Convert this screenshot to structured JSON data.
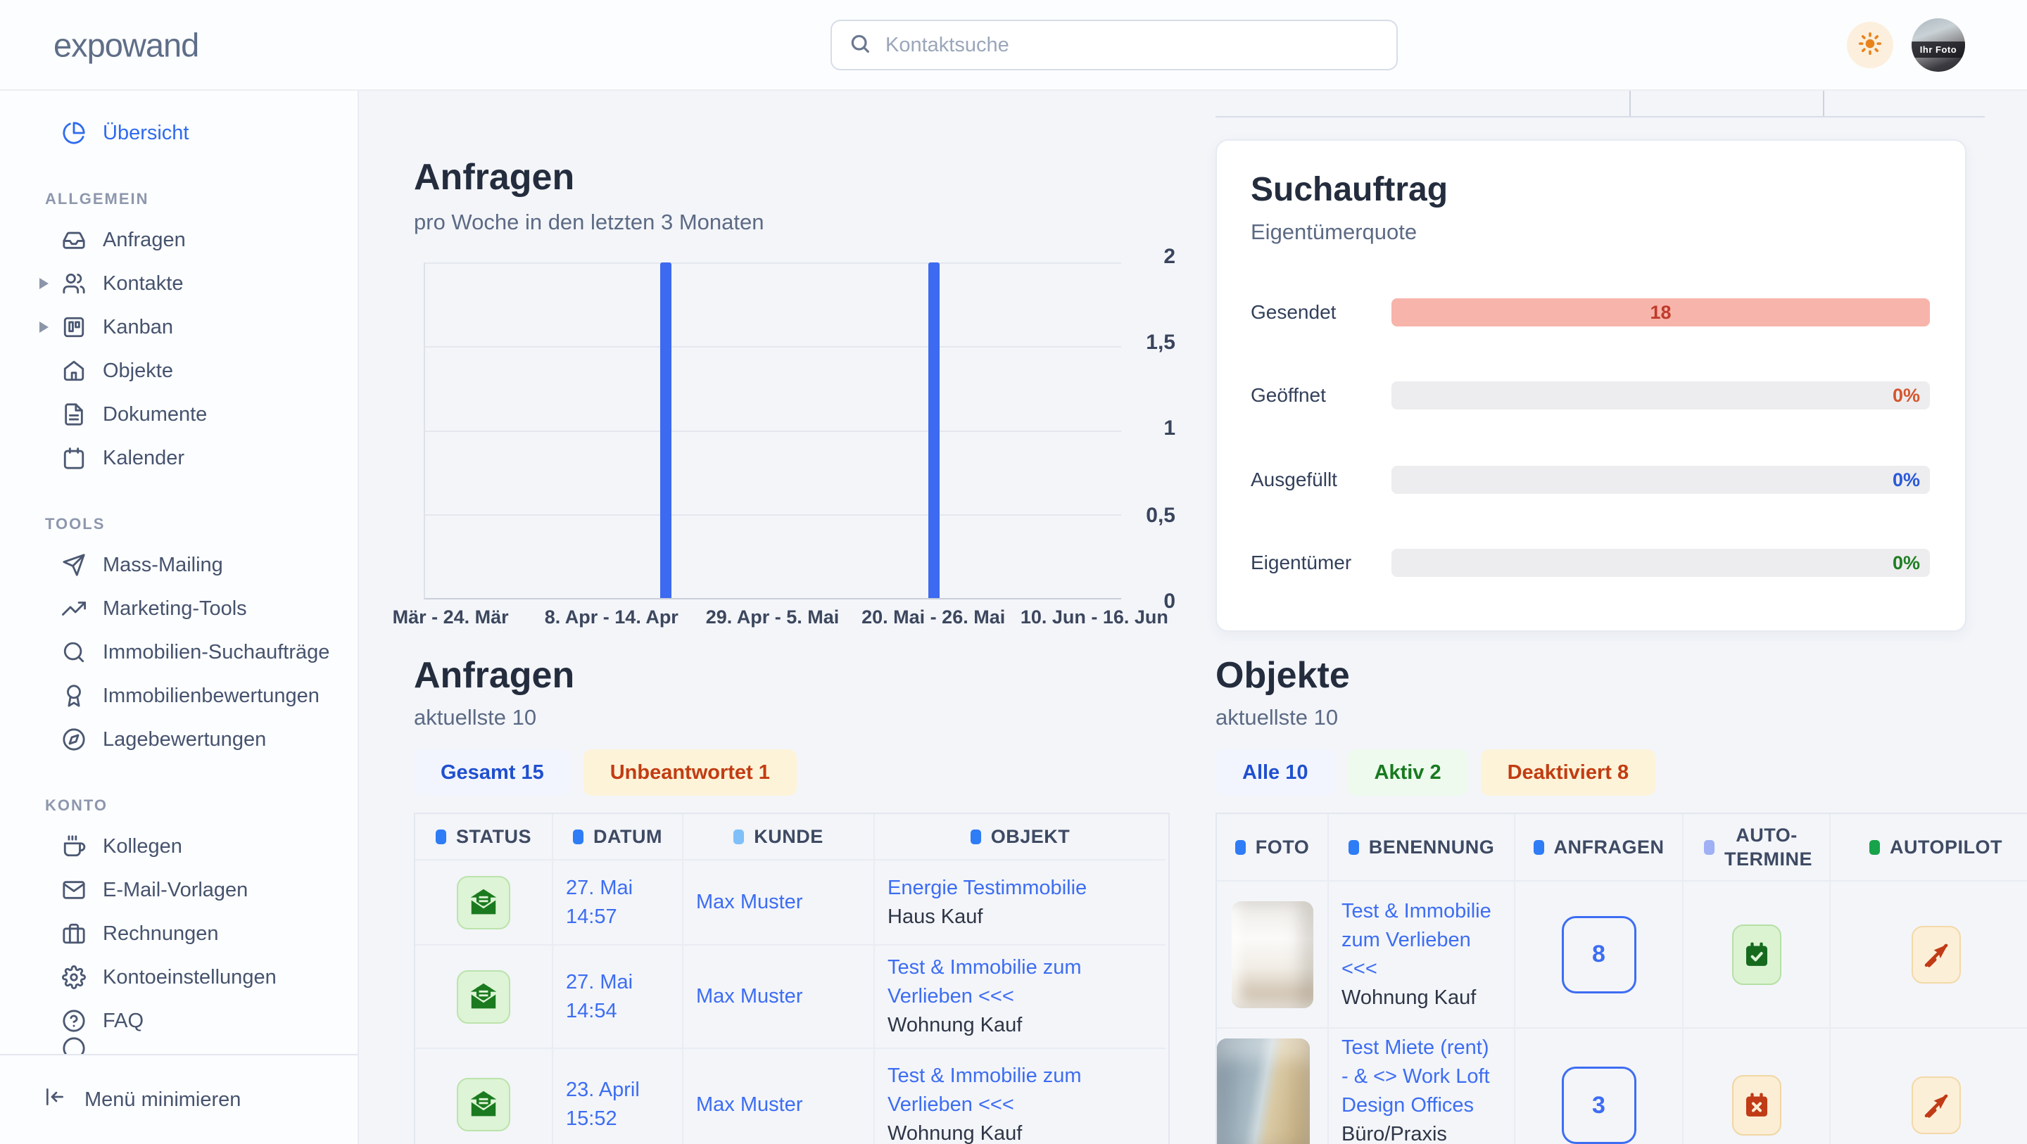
{
  "topbar": {
    "logo": "expowand",
    "search_placeholder": "Kontaktsuche",
    "avatar_text": "Ihr Foto"
  },
  "sidebar": {
    "overview_label": "Übersicht",
    "sections": [
      {
        "label": "ALLGEMEIN",
        "items": [
          {
            "label": "Anfragen",
            "icon": "inbox-icon"
          },
          {
            "label": "Kontakte",
            "icon": "users-icon"
          },
          {
            "label": "Kanban",
            "icon": "kanban-icon"
          },
          {
            "label": "Objekte",
            "icon": "home-icon"
          },
          {
            "label": "Dokumente",
            "icon": "document-icon"
          },
          {
            "label": "Kalender",
            "icon": "calendar-icon"
          }
        ]
      },
      {
        "label": "TOOLS",
        "items": [
          {
            "label": "Mass-Mailing",
            "icon": "send-icon"
          },
          {
            "label": "Marketing-Tools",
            "icon": "trending-up-icon"
          },
          {
            "label": "Immobilien-Suchaufträge",
            "icon": "search-icon"
          },
          {
            "label": "Immobilienbewertungen",
            "icon": "award-icon"
          },
          {
            "label": "Lagebewertungen",
            "icon": "compass-icon"
          }
        ]
      },
      {
        "label": "KONTO",
        "items": [
          {
            "label": "Kollegen",
            "icon": "coffee-icon"
          },
          {
            "label": "E-Mail-Vorlagen",
            "icon": "mail-icon"
          },
          {
            "label": "Rechnungen",
            "icon": "briefcase-icon"
          },
          {
            "label": "Kontoeinstellungen",
            "icon": "gear-icon"
          },
          {
            "label": "FAQ",
            "icon": "help-icon"
          }
        ]
      }
    ],
    "minimize_label": "Menü minimieren"
  },
  "chart_data": {
    "type": "bar",
    "title": "Anfragen",
    "subtitle": "pro Woche in den letzten 3 Monaten",
    "values": [
      0,
      0,
      0,
      0,
      2,
      0,
      0,
      0,
      0,
      2,
      0,
      0,
      0
    ],
    "ylim": [
      0,
      2
    ],
    "y_ticks": [
      "2",
      "1,5",
      "1",
      "0,5",
      "0"
    ],
    "x_tick_labels": [
      "Mär - 24. Mär",
      "8. Apr - 14. Apr",
      "29. Apr - 5. Mai",
      "20. Mai - 26. Mai",
      "10. Jun - 16. Jun"
    ],
    "x_tick_weeks": [
      1,
      4,
      7,
      10,
      13
    ],
    "bar_color": "#3c6af0",
    "grid": true,
    "legend": "none"
  },
  "anfragen_table": {
    "title": "Anfragen",
    "subtitle": "aktuellste 10",
    "tabs": [
      {
        "label": "Gesamt 15"
      },
      {
        "label": "Unbeantwortet 1"
      }
    ],
    "headers": [
      {
        "label": "STATUS",
        "bullet": "#2e7cf6"
      },
      {
        "label": "DATUM",
        "bullet": "#2e7cf6"
      },
      {
        "label": "KUNDE",
        "bullet": "#7fc0f9"
      },
      {
        "label": "OBJEKT",
        "bullet": "#2e7cf6"
      }
    ],
    "rows": [
      {
        "date": "27. Mai",
        "time": "14:57",
        "kunde": "Max Muster",
        "objekt": "Energie Testimmobilie",
        "objekt_sub": "Haus Kauf"
      },
      {
        "date": "27. Mai",
        "time": "14:54",
        "kunde": "Max Muster",
        "objekt": "Test & Immobilie zum Verlieben <<<",
        "objekt_sub": "Wohnung Kauf"
      },
      {
        "date": "23. April",
        "time": "15:52",
        "kunde": "Max Muster",
        "objekt": "Test & Immobilie zum Verlieben <<<",
        "objekt_sub": "Wohnung Kauf"
      }
    ]
  },
  "suchauftrag": {
    "title": "Suchauftrag",
    "subtitle": "Eigentümerquote",
    "rows": [
      {
        "label": "Gesendet",
        "value": "18",
        "bar_color": "#f7b4aa",
        "value_color": "#c03b2d",
        "value_align": "center"
      },
      {
        "label": "Geöffnet",
        "value": "0%",
        "bar_color": "#ededef",
        "value_color": "#d4562e",
        "value_align": "right"
      },
      {
        "label": "Ausgefüllt",
        "value": "0%",
        "bar_color": "#ededef",
        "value_color": "#2b59d8",
        "value_align": "right"
      },
      {
        "label": "Eigentümer",
        "value": "0%",
        "bar_color": "#ededef",
        "value_color": "#1e7e23",
        "value_align": "right"
      }
    ]
  },
  "objekte_table": {
    "title": "Objekte",
    "subtitle": "aktuellste 10",
    "tabs": [
      {
        "label": "Alle 10"
      },
      {
        "label": "Aktiv 2"
      },
      {
        "label": "Deaktiviert 8"
      }
    ],
    "headers": [
      {
        "label": "FOTO",
        "bullet": "#2e7cf6"
      },
      {
        "label": "BENENNUNG",
        "bullet": "#2e7cf6"
      },
      {
        "label": "ANFRAGEN",
        "bullet": "#2e7cf6"
      },
      {
        "label": "AUTO-TERMINE",
        "bullet": "#9fb0f4"
      },
      {
        "label": "AUTOPILOT",
        "bullet": "#17a34a"
      }
    ],
    "rows": [
      {
        "name": "Test & Immobilie zum Verlieben <<<",
        "sub": "Wohnung Kauf",
        "anfragen": "8",
        "termine": "check",
        "autopilot": "off",
        "photo": "interior"
      },
      {
        "name": "Test Miete (rent) - & <> Work Loft Design Offices",
        "sub": "Büro/Praxis Miete",
        "anfragen": "3",
        "termine": "x",
        "autopilot": "off",
        "photo": "building"
      }
    ]
  }
}
